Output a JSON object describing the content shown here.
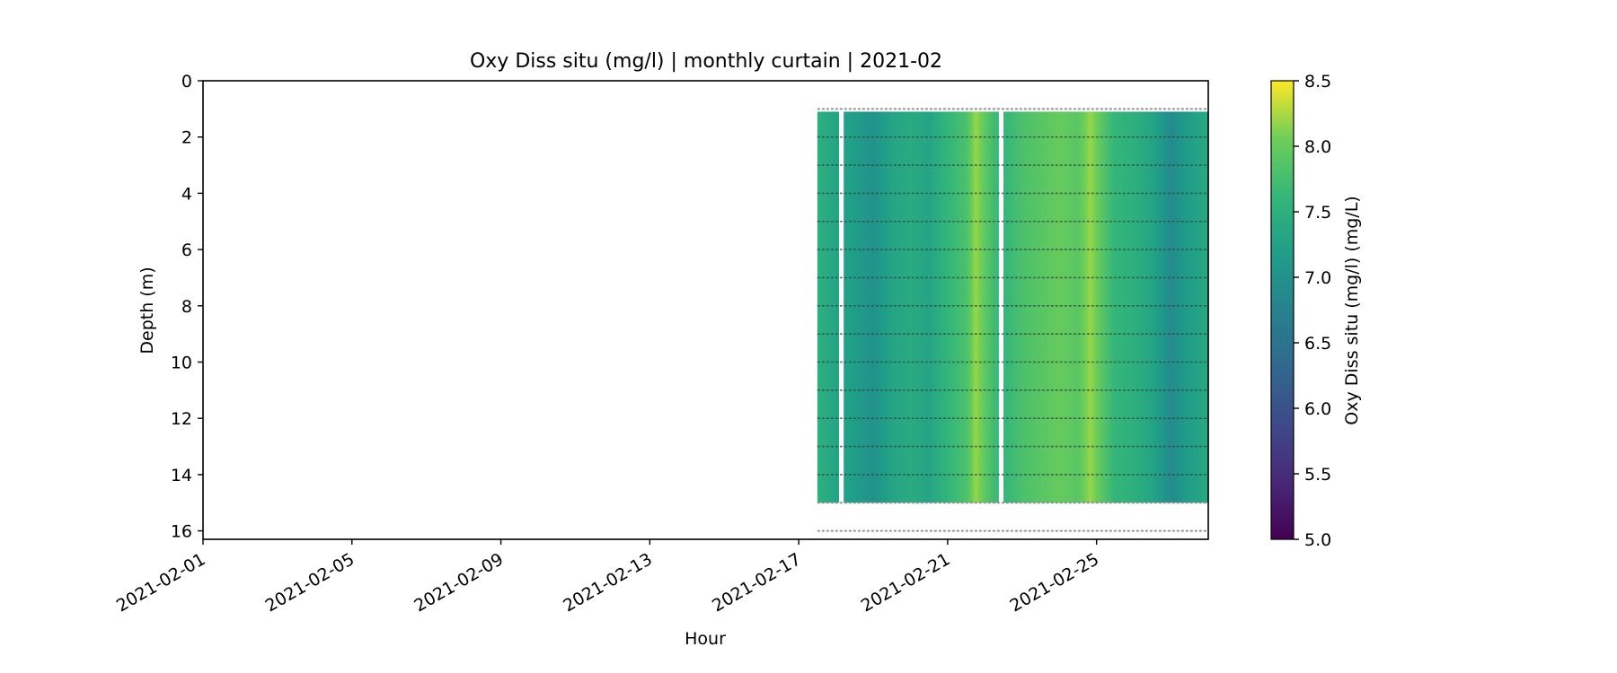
{
  "chart_data": {
    "type": "heatmap",
    "title": "Oxy Diss situ (mg/l) | monthly curtain | 2021-02",
    "xlabel": "Hour",
    "ylabel": "Depth (m)",
    "colorbar_label": "Oxy Diss situ (mg/l) (mg/L)",
    "colormap": "viridis",
    "x_range": [
      "2021-02-01",
      "2021-02-28T00:00"
    ],
    "ylim": [
      16.3,
      0
    ],
    "clim": [
      5.0,
      8.5
    ],
    "x_ticks": [
      "2021-02-01",
      "2021-02-05",
      "2021-02-09",
      "2021-02-13",
      "2021-02-17",
      "2021-02-21",
      "2021-02-25"
    ],
    "y_ticks": [
      "0",
      "2",
      "4",
      "6",
      "8",
      "10",
      "12",
      "14",
      "16"
    ],
    "colorbar_ticks": [
      "5.0",
      "5.5",
      "6.0",
      "6.5",
      "7.0",
      "7.5",
      "8.0",
      "8.5"
    ],
    "data_start": "2021-02-17T12:00",
    "data_end": "2021-02-28T00:00",
    "depth_top": 1.1,
    "depth_bottom": 15.0,
    "sensor_depths": [
      1,
      2,
      3,
      4,
      5,
      6,
      7,
      8,
      9,
      10,
      11,
      12,
      13,
      14,
      15,
      16
    ],
    "gaps": [
      [
        "2021-02-18T02:00",
        "2021-02-18T05:00"
      ],
      [
        "2021-02-22T09:00",
        "2021-02-22T12:00"
      ]
    ],
    "oxygen_profile": [
      {
        "time": "2021-02-17T12:00",
        "value": 7.5
      },
      {
        "time": "2021-02-18T00:00",
        "value": 7.3
      },
      {
        "time": "2021-02-18T12:00",
        "value": 7.2
      },
      {
        "time": "2021-02-19T00:00",
        "value": 7.0
      },
      {
        "time": "2021-02-19T12:00",
        "value": 7.3
      },
      {
        "time": "2021-02-20T00:00",
        "value": 7.4
      },
      {
        "time": "2021-02-20T12:00",
        "value": 7.3
      },
      {
        "time": "2021-02-21T00:00",
        "value": 7.6
      },
      {
        "time": "2021-02-21T12:00",
        "value": 7.8
      },
      {
        "time": "2021-02-21T18:00",
        "value": 8.2
      },
      {
        "time": "2021-02-22T06:00",
        "value": 7.7
      },
      {
        "time": "2021-02-22T12:00",
        "value": 7.6
      },
      {
        "time": "2021-02-23T00:00",
        "value": 7.8
      },
      {
        "time": "2021-02-23T12:00",
        "value": 7.9
      },
      {
        "time": "2021-02-24T00:00",
        "value": 8.0
      },
      {
        "time": "2021-02-24T12:00",
        "value": 7.9
      },
      {
        "time": "2021-02-24T20:00",
        "value": 8.2
      },
      {
        "time": "2021-02-25T06:00",
        "value": 7.8
      },
      {
        "time": "2021-02-25T12:00",
        "value": 7.6
      },
      {
        "time": "2021-02-26T00:00",
        "value": 7.5
      },
      {
        "time": "2021-02-26T12:00",
        "value": 7.3
      },
      {
        "time": "2021-02-27T00:00",
        "value": 6.9
      },
      {
        "time": "2021-02-27T12:00",
        "value": 7.2
      },
      {
        "time": "2021-02-28T00:00",
        "value": 7.4
      }
    ]
  }
}
